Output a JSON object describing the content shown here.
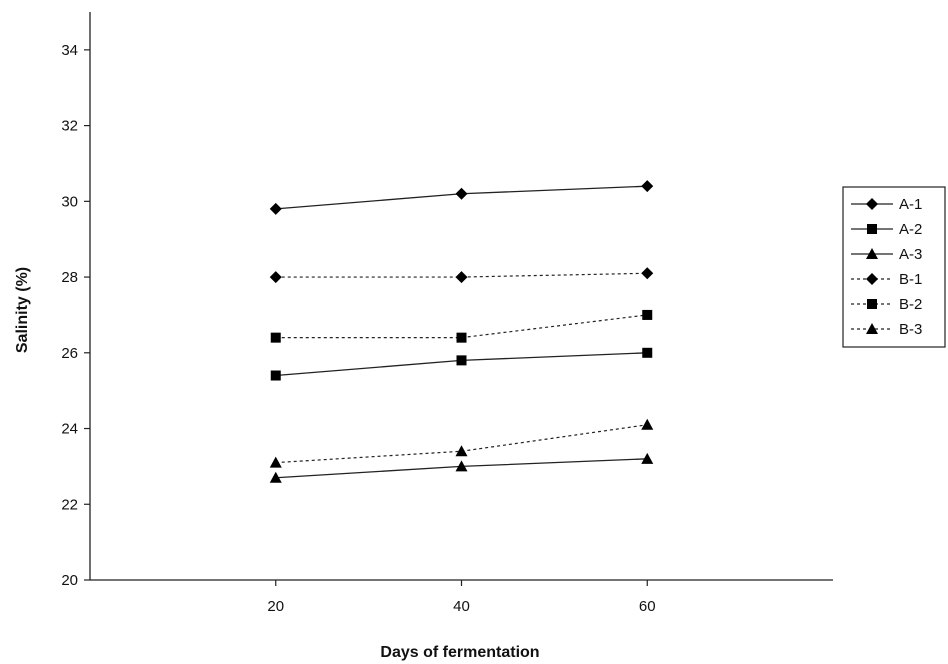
{
  "chart_data": {
    "type": "line",
    "xlabel": "Days of fermentation",
    "ylabel": "Salinity (%)",
    "x": [
      20,
      40,
      60
    ],
    "xlim": [
      0,
      80
    ],
    "ylim": [
      20,
      35
    ],
    "yticks": [
      20,
      22,
      24,
      26,
      28,
      30,
      32,
      34
    ],
    "xticks": [
      20,
      40,
      60
    ],
    "grid": false,
    "legend_position": "right",
    "series": [
      {
        "name": "A-1",
        "values": [
          29.8,
          30.2,
          30.4
        ],
        "marker": "diamond",
        "line": "solid"
      },
      {
        "name": "A-2",
        "values": [
          25.4,
          25.8,
          26.0
        ],
        "marker": "square",
        "line": "solid"
      },
      {
        "name": "A-3",
        "values": [
          22.7,
          23.0,
          23.2
        ],
        "marker": "triangle",
        "line": "solid"
      },
      {
        "name": "B-1",
        "values": [
          28.0,
          28.0,
          28.1
        ],
        "marker": "diamond",
        "line": "dotted"
      },
      {
        "name": "B-2",
        "values": [
          26.4,
          26.4,
          27.0
        ],
        "marker": "square",
        "line": "dotted"
      },
      {
        "name": "B-3",
        "values": [
          23.1,
          23.4,
          24.1
        ],
        "marker": "triangle",
        "line": "dotted"
      }
    ]
  }
}
